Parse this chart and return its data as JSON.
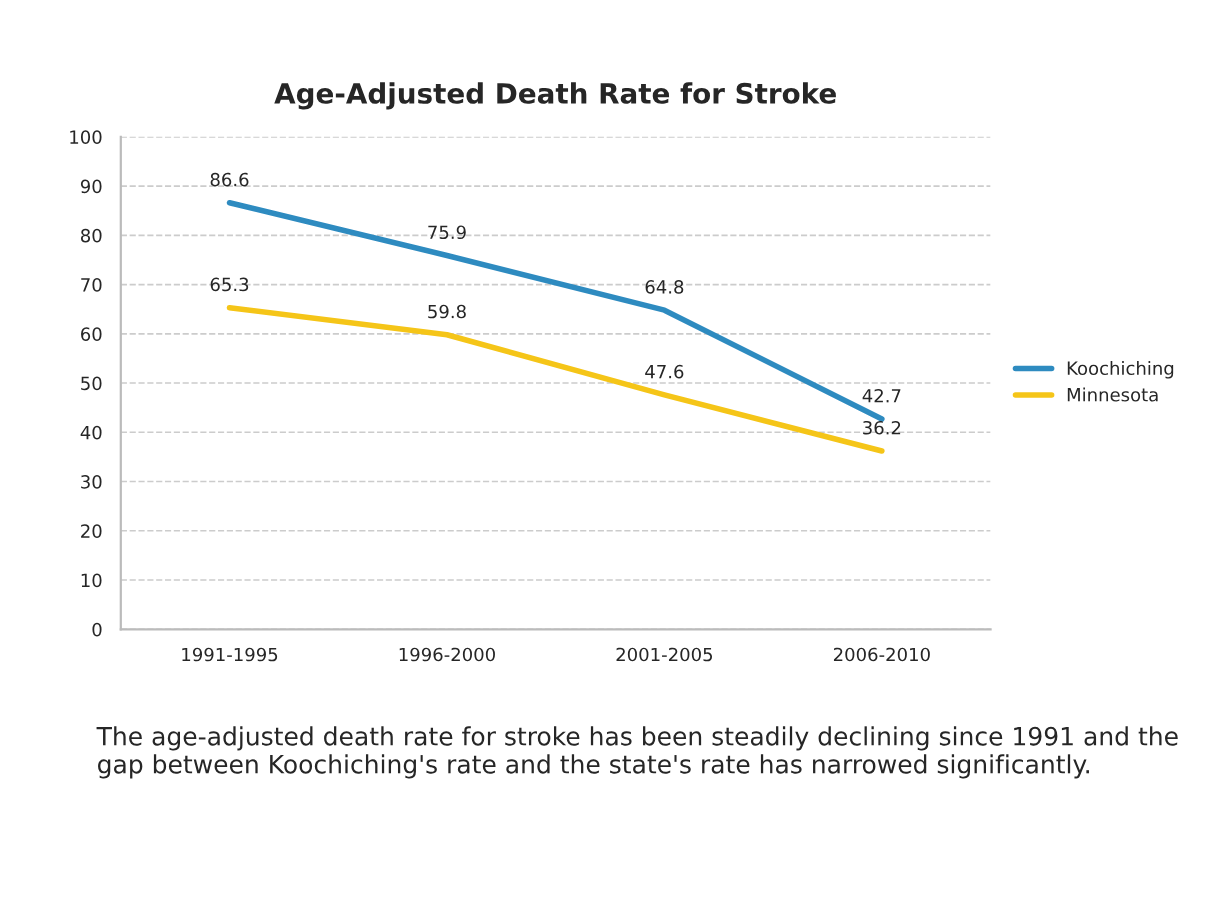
{
  "chart_data": {
    "type": "line",
    "title": "Age-Adjusted Death Rate for Stroke",
    "categories": [
      "1991-1995",
      "1996-2000",
      "2001-2005",
      "2006-2010"
    ],
    "series": [
      {
        "name": "Koochiching",
        "color": "#2e8bc0",
        "values": [
          86.6,
          75.9,
          64.8,
          42.7
        ]
      },
      {
        "name": "Minnesota",
        "color": "#f5c518",
        "values": [
          65.3,
          59.8,
          47.6,
          36.2
        ]
      }
    ],
    "ylim": [
      0,
      100
    ],
    "yticks": [
      0,
      10,
      20,
      30,
      40,
      50,
      60,
      70,
      80,
      90,
      100
    ],
    "grid": "y",
    "legend": "right",
    "data_labels": true,
    "marker": "none",
    "line_style": "solid",
    "annotations": [
      "The age-adjusted death rate for stroke has been steadily declining since 1991 and the gap between Koochiching's rate and the state's rate has narrowed significantly."
    ]
  }
}
